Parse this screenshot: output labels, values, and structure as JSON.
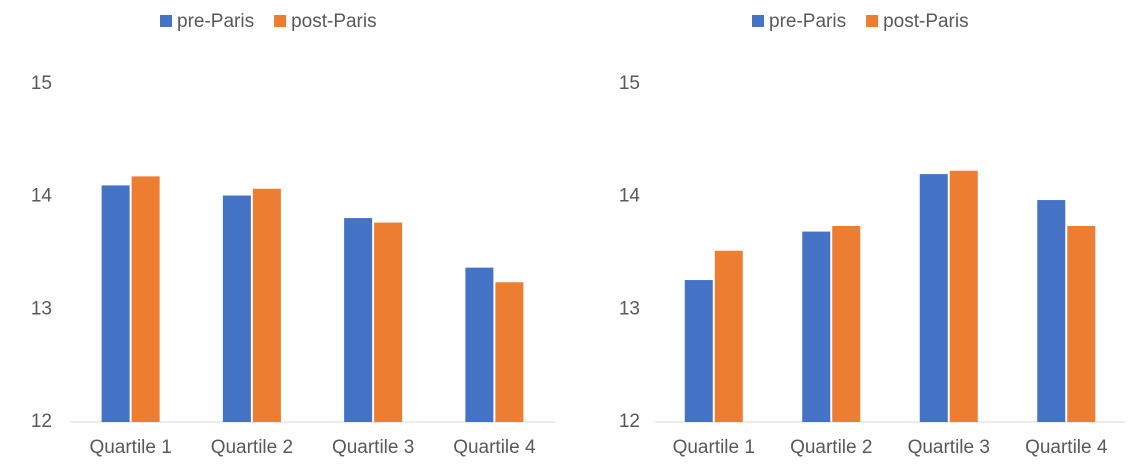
{
  "chart_data": [
    {
      "type": "bar",
      "categories": [
        "Quartile 1",
        "Quartile 2",
        "Quartile 3",
        "Quartile 4"
      ],
      "series": [
        {
          "name": "pre-Paris",
          "color": "#4472c4",
          "values": [
            14.1,
            14.01,
            13.81,
            13.37
          ]
        },
        {
          "name": "post-Paris",
          "color": "#ed7d31",
          "values": [
            14.18,
            14.07,
            13.77,
            13.24
          ]
        }
      ],
      "ylim": [
        12,
        15
      ],
      "yticks": [
        12,
        13,
        14,
        15
      ],
      "grid": false,
      "legend": "top"
    },
    {
      "type": "bar",
      "categories": [
        "Quartile 1",
        "Quartile 2",
        "Quartile 3",
        "Quartile 4"
      ],
      "series": [
        {
          "name": "pre-Paris",
          "color": "#4472c4",
          "values": [
            13.26,
            13.69,
            14.2,
            13.97
          ]
        },
        {
          "name": "post-Paris",
          "color": "#ed7d31",
          "values": [
            13.52,
            13.74,
            14.23,
            13.74
          ]
        }
      ],
      "ylim": [
        12,
        15
      ],
      "yticks": [
        12,
        13,
        14,
        15
      ],
      "grid": false,
      "legend": "top"
    }
  ]
}
